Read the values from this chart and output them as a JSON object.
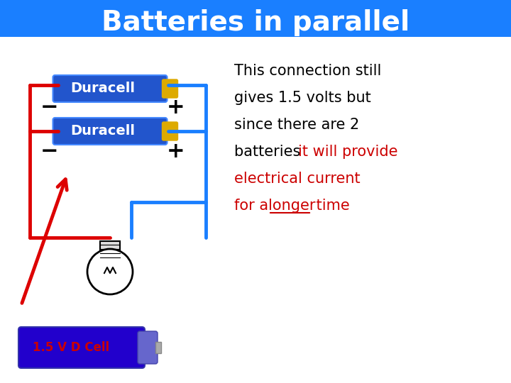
{
  "title": "Batteries in parallel",
  "title_bg": "#1a7fff",
  "title_color": "#ffffff",
  "title_fontsize": 28,
  "bg_color": "#ffffff",
  "battery1_label": "Duracell",
  "battery2_label": "Duracell",
  "battery_color": "#2255cc",
  "battery_color2": "#3366dd",
  "terminal_color": "#ddaa00",
  "wire_red": "#dd0000",
  "wire_blue": "#1a7fff",
  "minus_color": "#000000",
  "plus_color": "#000000",
  "text_black": "#000000",
  "text_red": "#cc0000",
  "label_color": "#cc0000",
  "dcell_color": "#2200cc",
  "dcell_label": "1.5 V D Cell",
  "description_line1": "This connection still",
  "description_line2": "gives 1.5 volts but",
  "description_line3": "since there are 2",
  "description_line4": "batteries ",
  "description_line4_red": "it will provide",
  "description_line5_red": "electrical current",
  "description_line6_red": "for a ",
  "description_line6_underline": "longer",
  "description_line6_end": " time"
}
